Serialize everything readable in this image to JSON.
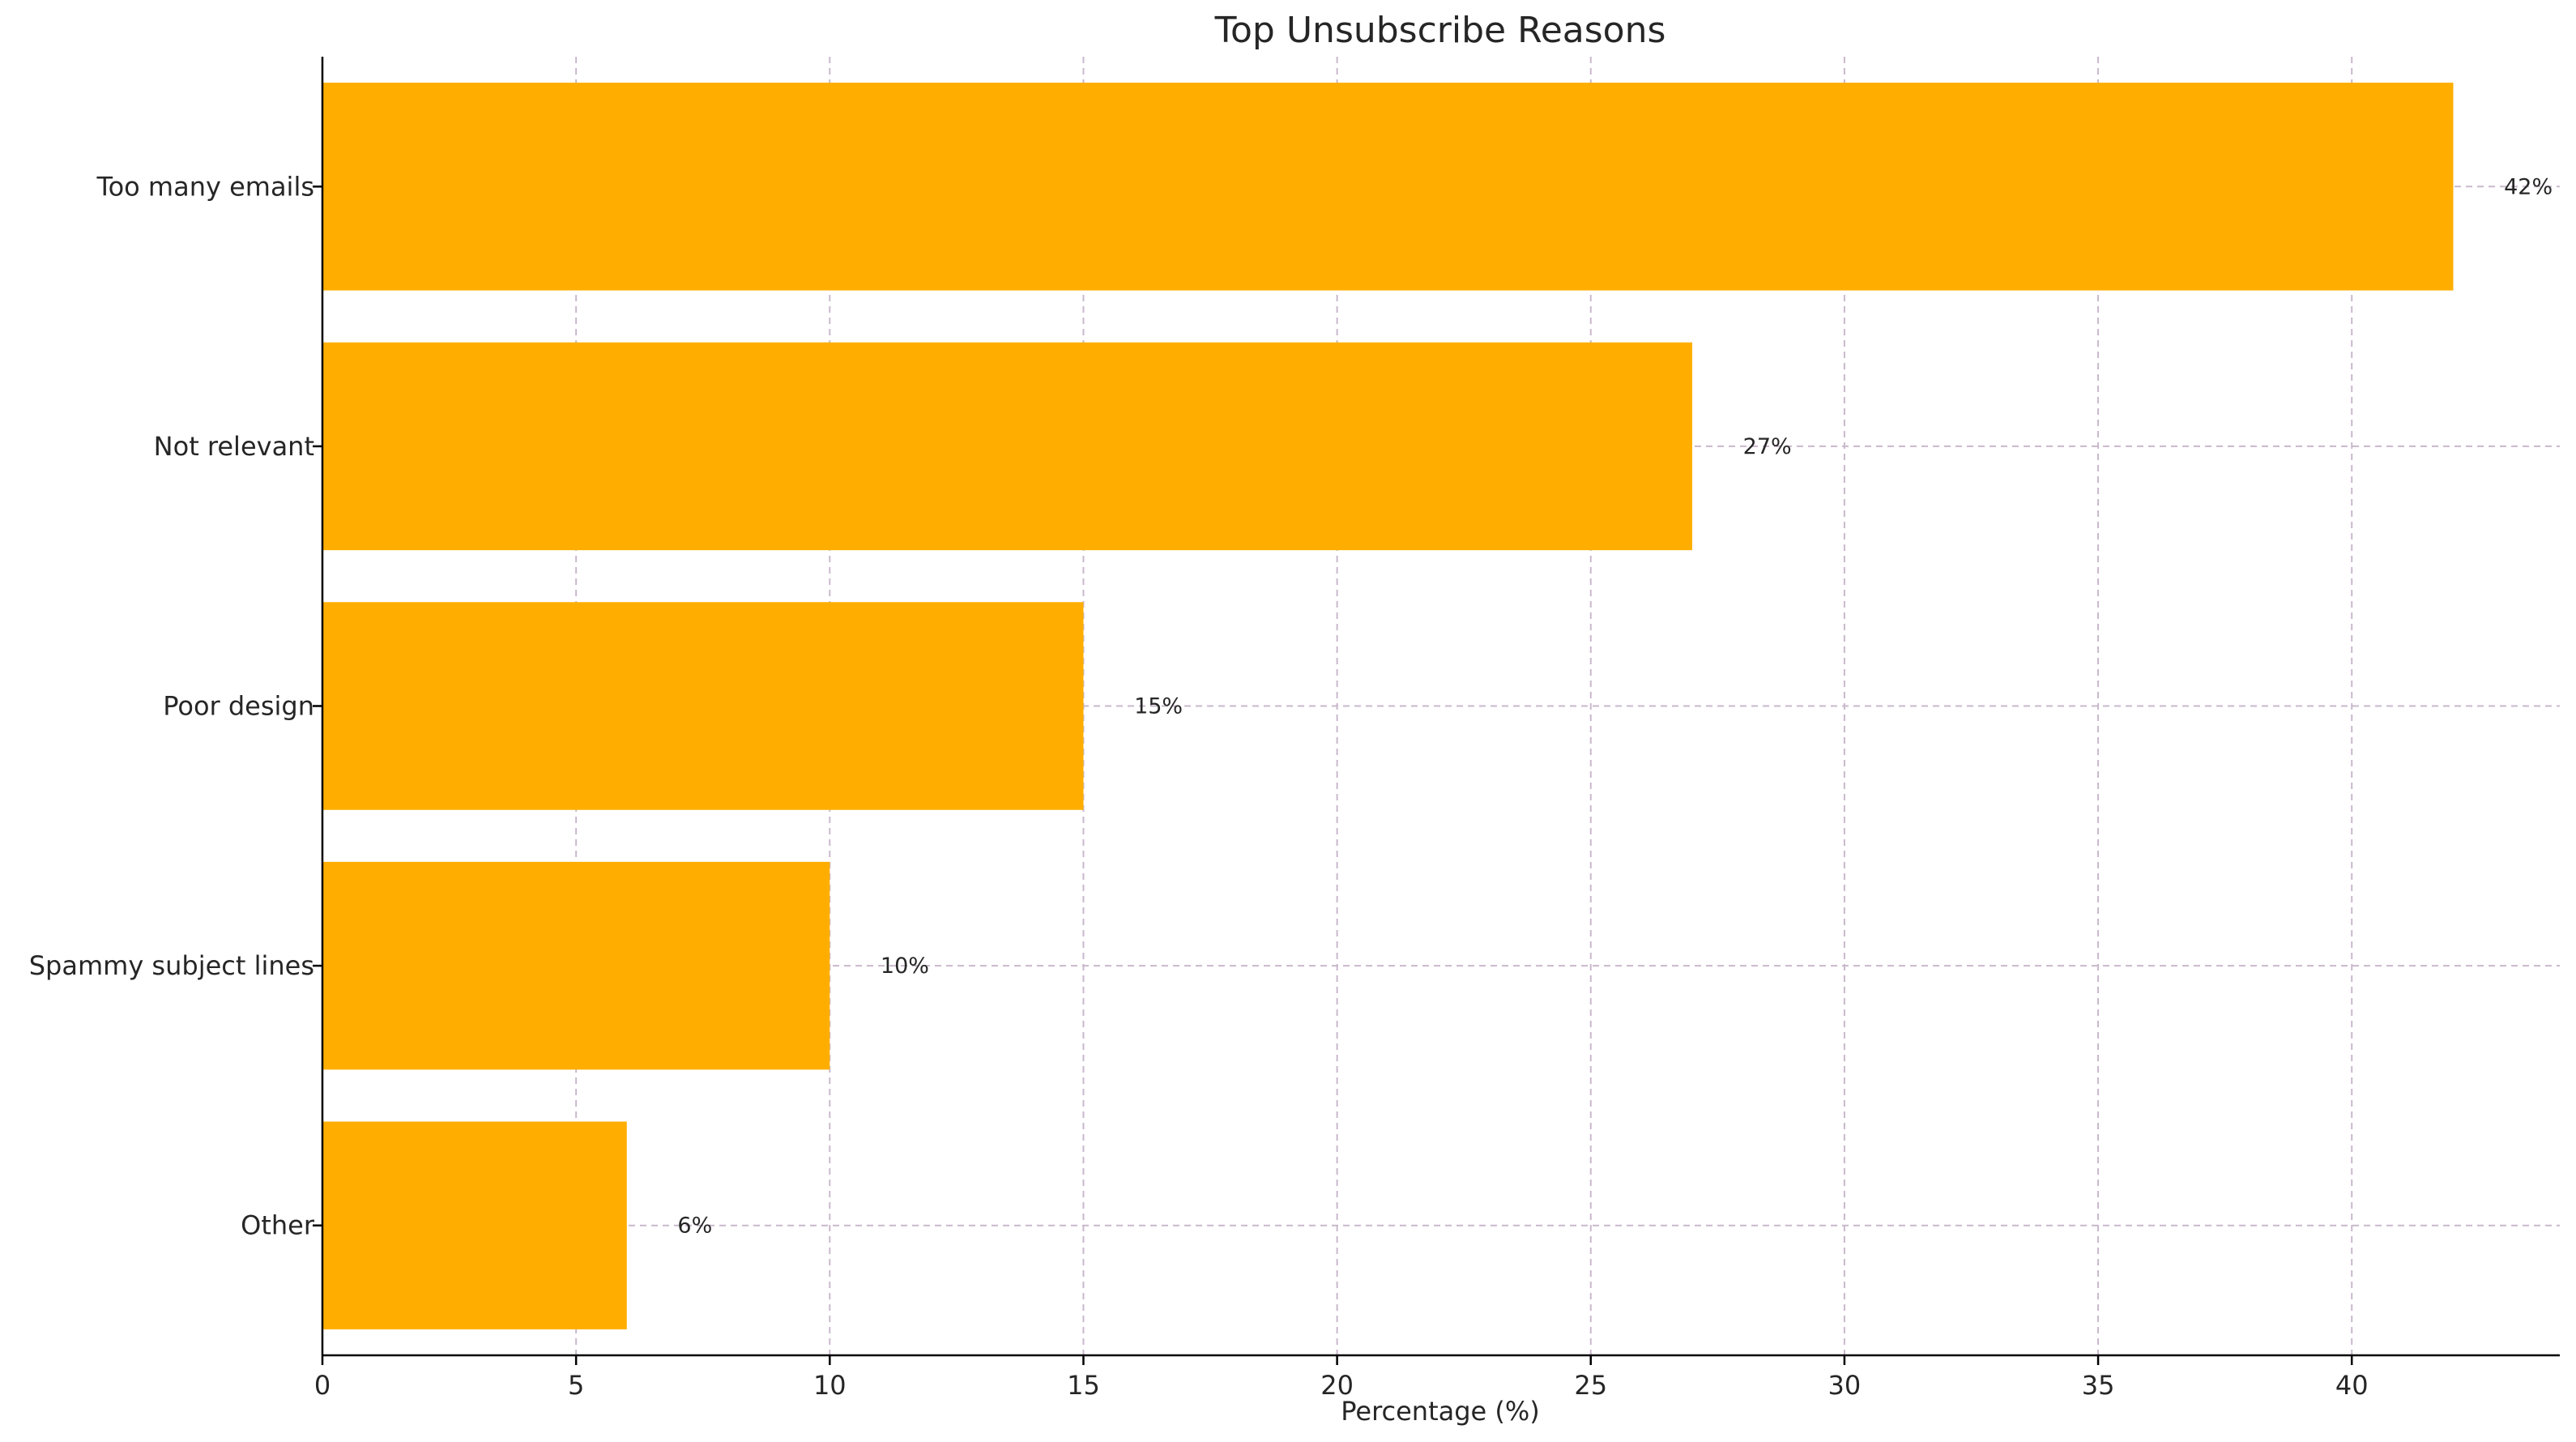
{
  "chart_data": {
    "type": "bar",
    "orientation": "horizontal",
    "title": "Top Unsubscribe Reasons",
    "xlabel": "Percentage (%)",
    "ylabel": "",
    "categories": [
      "Too many emails",
      "Not relevant",
      "Poor design",
      "Spammy subject lines",
      "Other"
    ],
    "values": [
      42,
      27,
      15,
      10,
      6
    ],
    "data_labels": [
      "42%",
      "27%",
      "15%",
      "10%",
      "6%"
    ],
    "xlim": [
      0,
      44.1
    ],
    "xticks": [
      0,
      5,
      10,
      15,
      20,
      25,
      30,
      35,
      40
    ],
    "bar_color": "#FFAE00",
    "grid": true,
    "legend": "none"
  }
}
